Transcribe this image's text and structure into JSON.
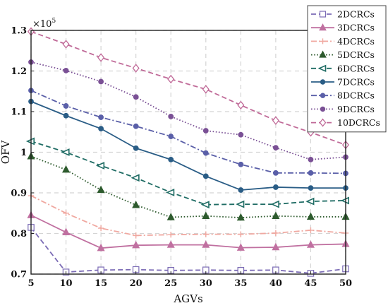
{
  "chart_data": {
    "type": "line",
    "xlabel": "AGVs",
    "ylabel": "OFV",
    "multiplier": {
      "base": "×10",
      "exponent": "5"
    },
    "x": [
      5,
      10,
      15,
      20,
      25,
      30,
      35,
      40,
      45,
      50
    ],
    "xlim": [
      5,
      50
    ],
    "ylim": [
      0.7,
      1.3
    ],
    "xticks": [
      "5",
      "10",
      "15",
      "20",
      "25",
      "30",
      "35",
      "40",
      "45",
      "50"
    ],
    "yticks": [
      0.7,
      0.8,
      0.9,
      1.0,
      1.1,
      1.2,
      1.3
    ],
    "ytick_labels": [
      "0.7",
      "0.8",
      "0.9",
      "1",
      "1.1",
      "1.2",
      "1.3"
    ],
    "grid": true,
    "legend_position": "top-right",
    "series": [
      {
        "name": "2DCRCs",
        "color": "#7b6bb5",
        "marker": "square-open",
        "dash": "dashed",
        "values": [
          0.815,
          0.705,
          0.71,
          0.711,
          0.709,
          0.71,
          0.709,
          0.71,
          0.702,
          0.713
        ]
      },
      {
        "name": "3DCRCs",
        "color": "#c070a0",
        "marker": "triangle-up",
        "dash": "solid",
        "values": [
          0.845,
          0.803,
          0.764,
          0.771,
          0.772,
          0.772,
          0.765,
          0.766,
          0.772,
          0.774
        ]
      },
      {
        "name": "4DCRCs",
        "color": "#f0a8a0",
        "marker": "plus",
        "dash": "dashdot",
        "values": [
          0.893,
          0.85,
          0.813,
          0.795,
          0.797,
          0.798,
          0.798,
          0.801,
          0.808,
          0.801
        ]
      },
      {
        "name": "5DCRCs",
        "color": "#2d5a2d",
        "marker": "triangle-up",
        "dash": "dotted",
        "values": [
          0.99,
          0.957,
          0.907,
          0.87,
          0.84,
          0.843,
          0.839,
          0.843,
          0.841,
          0.841
        ]
      },
      {
        "name": "6DCRCs",
        "color": "#1f6c64",
        "marker": "triangle-left",
        "dash": "dashed",
        "values": [
          1.027,
          1.0,
          0.967,
          0.937,
          0.901,
          0.871,
          0.872,
          0.872,
          0.879,
          0.881
        ]
      },
      {
        "name": "7DCRCs",
        "color": "#2a5d86",
        "marker": "circle",
        "dash": "solid",
        "values": [
          1.125,
          1.09,
          1.058,
          1.01,
          0.982,
          0.941,
          0.907,
          0.914,
          0.912,
          0.912
        ]
      },
      {
        "name": "8DCRCs",
        "color": "#5a5fa8",
        "marker": "circle",
        "dash": "dashdot",
        "values": [
          1.152,
          1.114,
          1.086,
          1.064,
          1.039,
          0.998,
          0.97,
          0.949,
          0.949,
          0.948
        ]
      },
      {
        "name": "9DCRCs",
        "color": "#7a5095",
        "marker": "circle",
        "dash": "dotted",
        "values": [
          1.222,
          1.201,
          1.174,
          1.136,
          1.088,
          1.053,
          1.043,
          1.011,
          0.982,
          0.988
        ]
      },
      {
        "name": "10DCRCs",
        "color": "#c06a98",
        "marker": "diamond-open",
        "dash": "dashed",
        "values": [
          1.297,
          1.266,
          1.233,
          1.207,
          1.18,
          1.155,
          1.116,
          1.078,
          1.049,
          1.018
        ]
      }
    ]
  }
}
